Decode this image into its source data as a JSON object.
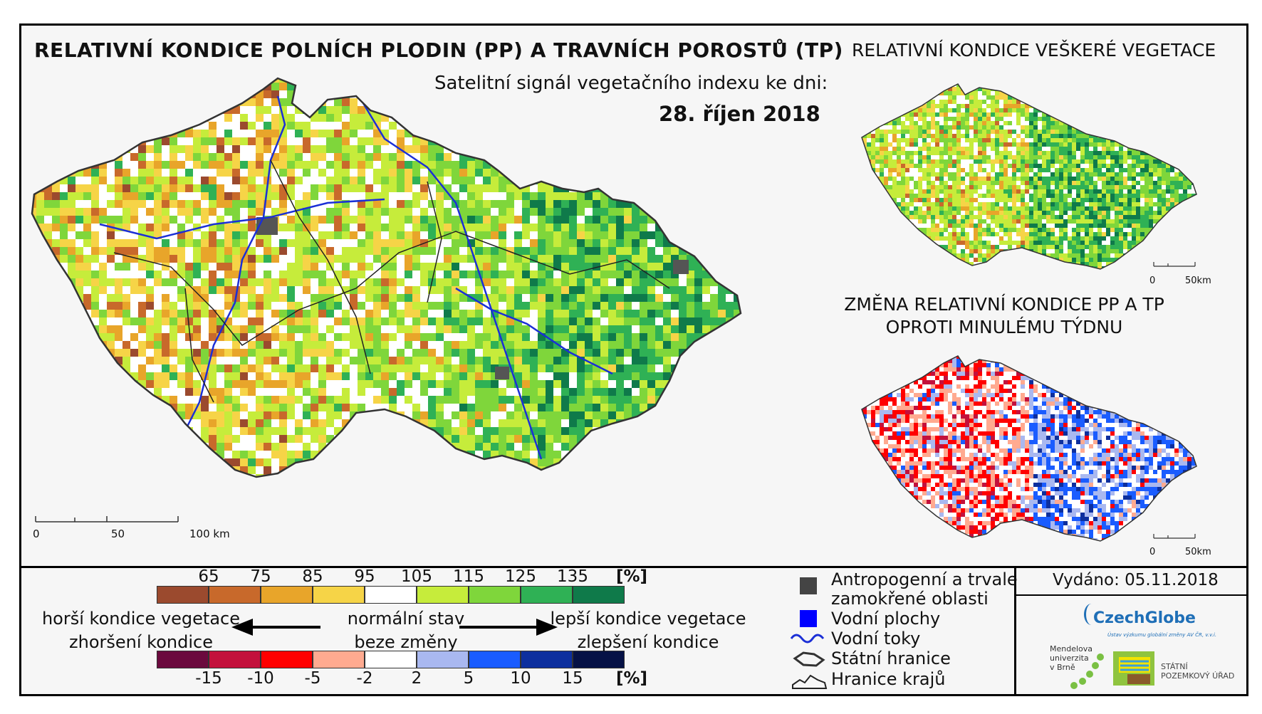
{
  "title_main": "RELATIVNÍ KONDICE POLNÍCH PLODIN (PP) A TRAVNÍCH POROSTŮ (TP)",
  "title_right": "RELATIVNÍ KONDICE VEŠKERÉ VEGETACE",
  "subtitle": "Satelitní signál vegetačního indexu ke dni:",
  "date": "28. říjen 2018",
  "change_title_line1": "ZMĚNA RELATIVNÍ KONDICE PP A TP",
  "change_title_line2": "OPROTI MINULÉMU TÝDNU",
  "main_scale": {
    "t0": "0",
    "t1": "50",
    "t2": "100 km"
  },
  "mini_scale": {
    "t0": "0",
    "t1": "50km"
  },
  "condition_legend": {
    "labels": [
      "65",
      "75",
      "85",
      "95",
      "105",
      "115",
      "125",
      "135"
    ],
    "unit": "[%]",
    "colors": [
      "#9b4a2e",
      "#c8692b",
      "#e8a52a",
      "#f6d447",
      "#ffffff",
      "#c6ec3b",
      "#7fd63b",
      "#2fb155",
      "#0f7a4a"
    ]
  },
  "change_legend": {
    "labels": [
      "-15",
      "-10",
      "-5",
      "-2",
      "2",
      "5",
      "10",
      "15"
    ],
    "unit": "[%]",
    "colors": [
      "#6b0a3e",
      "#c3113c",
      "#ff0000",
      "#ffaa90",
      "#ffffff",
      "#a9b8f0",
      "#1a5cff",
      "#0d2f9e",
      "#061246"
    ]
  },
  "captions": {
    "worse_1": "horší kondice vegetace",
    "worse_2": "zhoršení kondice",
    "normal_1": "normální stav",
    "normal_2": "beze změny",
    "better_1": "lepší kondice vegetace",
    "better_2": "zlepšení kondice"
  },
  "legend": {
    "anthropogenic_1": "Antropogenní a trvale",
    "anthropogenic_2": "zamokřené oblasti",
    "water_areas": "Vodní plochy",
    "rivers": "Vodní toky",
    "state_border": "Státní hranice",
    "regions": "Hranice krajů"
  },
  "issued": "Vydáno: 05.11.2018",
  "logos": {
    "czechglobe": "CzechGlobe",
    "czechglobe_sub": "Ústav výzkumu globální změny AV ČR, v.v.i.",
    "mendel_1": "Mendelova",
    "mendel_2": "univerzita",
    "mendel_3": "v Brně",
    "spu_1": "STÁTNÍ",
    "spu_2": "POZEMKOVÝ ÚŘAD"
  },
  "colors": {
    "anthropogenic": "#444444",
    "water": "#0000ff",
    "river": "#1b2fd6",
    "border": "#222222"
  }
}
